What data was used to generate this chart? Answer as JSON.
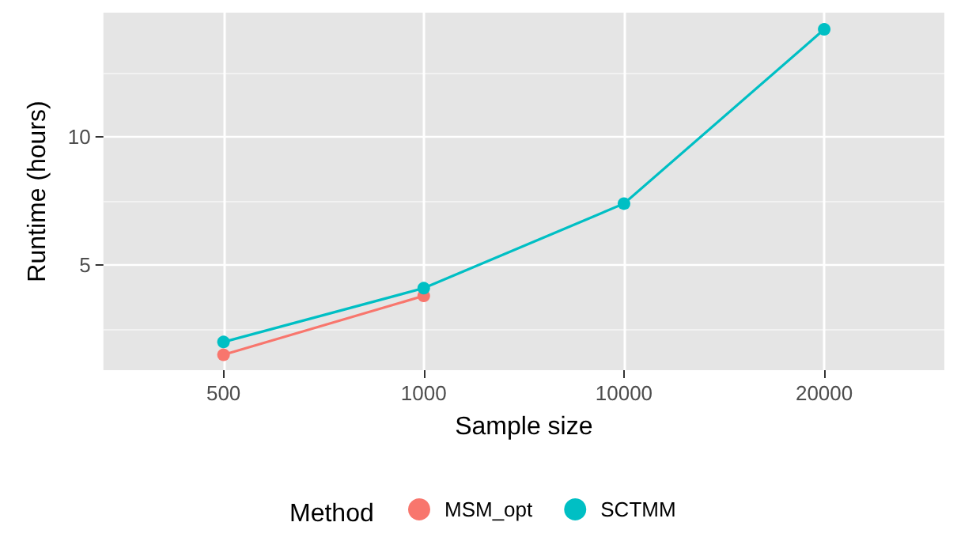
{
  "chart_data": {
    "type": "line",
    "xlabel": "Sample size",
    "ylabel": "Runtime (hours)",
    "legend_title": "Method",
    "categories": [
      "500",
      "1000",
      "10000",
      "20000"
    ],
    "series": [
      {
        "name": "MSM_opt",
        "color": "#f8766d",
        "values": [
          1.5,
          3.8,
          null,
          null
        ]
      },
      {
        "name": "SCTMM",
        "color": "#00bfc4",
        "values": [
          2.0,
          4.1,
          7.4,
          14.2
        ]
      }
    ],
    "ylim": [
      0.9,
      14.85
    ],
    "yticks": [
      {
        "value": 2.5,
        "label": null
      },
      5,
      {
        "value": 7.5,
        "label": null
      },
      10,
      {
        "value": 12.5,
        "label": null
      }
    ],
    "grid": true,
    "legend": "bottom",
    "marker": "circle",
    "line_style": "solid"
  }
}
